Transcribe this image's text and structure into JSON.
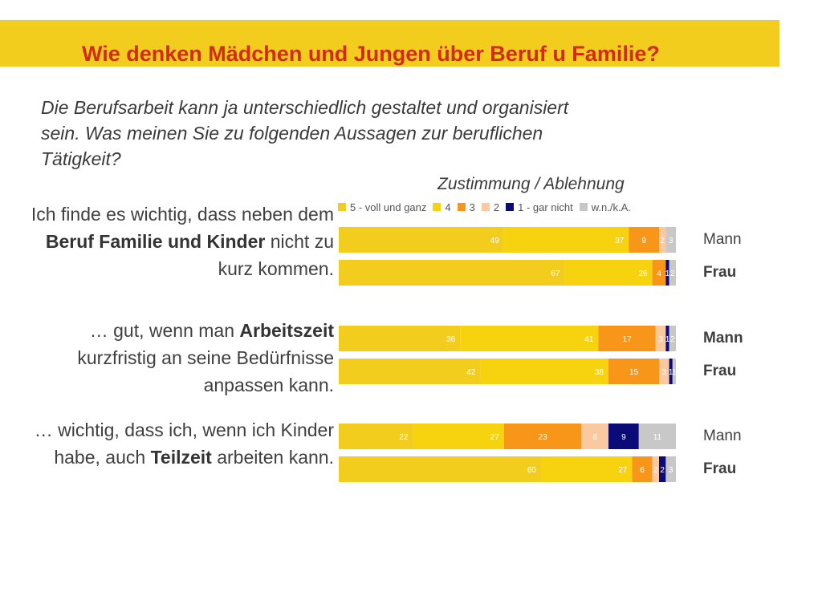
{
  "title": "Wie denken Mädchen und Jungen über Beruf u Familie?",
  "subtitle": "Die Berufsarbeit kann ja unterschiedlich gestaltet und organisiert sein. Was meinen Sie zu folgenden Aussagen zur beruflichen Tätigkeit?",
  "axis_title": "Zustimmung / Ablehnung",
  "questions": [
    {
      "parts": [
        {
          "text": "Ich finde es wichtig, dass neben dem ",
          "bold": false
        },
        {
          "text": "Beruf Familie und Kinder",
          "bold": true
        },
        {
          "text": " nicht zu kurz kommen.",
          "bold": false
        }
      ]
    },
    {
      "parts": [
        {
          "text": "… gut, wenn man ",
          "bold": false
        },
        {
          "text": "Arbeitszeit",
          "bold": true
        },
        {
          "text": " kurzfristig an seine Bedürfnisse anpassen kann.",
          "bold": false
        }
      ]
    },
    {
      "parts": [
        {
          "text": "… wichtig, dass ich, wenn ich Kinder habe, auch ",
          "bold": false
        },
        {
          "text": "Teilzeit",
          "bold": true
        },
        {
          "text": " arbeiten kann.",
          "bold": false
        }
      ]
    }
  ],
  "colors": {
    "banner": "#f2cd1d",
    "title": "#d42a12",
    "s5": "#f2cd1d",
    "s4": "#f7d20f",
    "s3": "#f8961a",
    "s2": "#fbc9a0",
    "s1": "#0a0a78",
    "na": "#c8c8c8"
  },
  "chart_data": {
    "type": "bar",
    "orientation": "horizontal",
    "stacked": true,
    "title": "",
    "xlabel": "Zustimmung / Ablehnung",
    "ylabel": "",
    "legend_position": "top",
    "series": [
      {
        "name": "5 - voll und ganz",
        "values": [
          49,
          67,
          36,
          42,
          22,
          60
        ]
      },
      {
        "name": "4",
        "values": [
          37,
          26,
          41,
          38,
          27,
          27
        ]
      },
      {
        "name": "3",
        "values": [
          9,
          4,
          17,
          15,
          23,
          6
        ]
      },
      {
        "name": "2",
        "values": [
          2,
          0,
          3,
          3,
          8,
          2
        ]
      },
      {
        "name": "1 - gar nicht",
        "values": [
          0,
          1,
          1,
          1,
          9,
          2
        ]
      },
      {
        "name": "w.n./k.A.",
        "values": [
          3,
          2,
          2,
          1,
          11,
          3
        ]
      }
    ],
    "categories": [
      "Mann",
      "Frau",
      "Mann",
      "Frau",
      "Mann",
      "Frau"
    ],
    "category_bold": [
      false,
      true,
      true,
      true,
      false,
      true
    ],
    "label_colors": [
      "#ffffff",
      "#ffffff",
      "#ffffff",
      "#ffffff",
      "#ffffff",
      "#ffffff"
    ]
  }
}
